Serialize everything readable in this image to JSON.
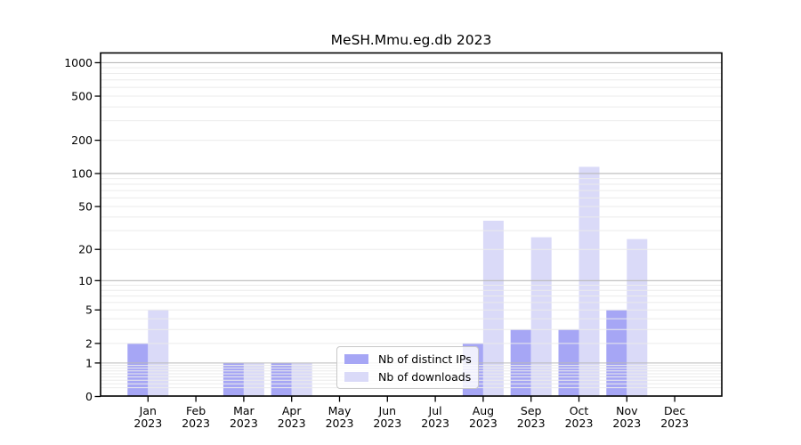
{
  "title": "MeSH.Mmu.eg.db 2023",
  "chart_data": {
    "type": "bar",
    "title": "MeSH.Mmu.eg.db 2023",
    "categories": [
      "Jan 2023",
      "Feb 2023",
      "Mar 2023",
      "Apr 2023",
      "May 2023",
      "Jun 2023",
      "Jul 2023",
      "Aug 2023",
      "Sep 2023",
      "Oct 2023",
      "Nov 2023",
      "Dec 2023"
    ],
    "series": [
      {
        "name": "Nb of distinct IPs",
        "color": "#a6a6f5",
        "values": [
          2,
          0,
          1,
          1,
          0,
          0,
          0,
          2,
          3,
          3,
          5,
          0
        ]
      },
      {
        "name": "Nb of downloads",
        "color": "#dadaf8",
        "values": [
          5,
          0,
          1,
          1,
          0,
          0,
          0,
          37,
          26,
          115,
          25,
          0
        ]
      }
    ],
    "xlabel": "",
    "ylabel": "",
    "y_scale": "log10(1+v)",
    "y_ticks": [
      0,
      1,
      2,
      5,
      10,
      20,
      50,
      100,
      200,
      500,
      1000
    ],
    "major_gridline_values": [
      1,
      10,
      100,
      1000
    ],
    "minor_gridline_values": [
      0.2,
      0.3,
      0.4,
      0.5,
      0.6,
      0.7,
      0.8,
      0.9,
      2,
      3,
      4,
      5,
      6,
      7,
      8,
      9,
      20,
      30,
      40,
      50,
      60,
      70,
      80,
      90,
      200,
      300,
      400,
      500,
      600,
      700,
      800,
      900
    ],
    "ylim": [
      0,
      1224
    ],
    "grid": true,
    "legend_position": "lower center"
  },
  "colors": {
    "bar_distinct_ips": "#a6a6f5",
    "bar_downloads": "#dadaf8",
    "major_grid": "#b9b9b9",
    "minor_grid": "#ebebeb",
    "axis": "#000000",
    "legend_border": "#c8c8c8",
    "background": "#ffffff"
  }
}
